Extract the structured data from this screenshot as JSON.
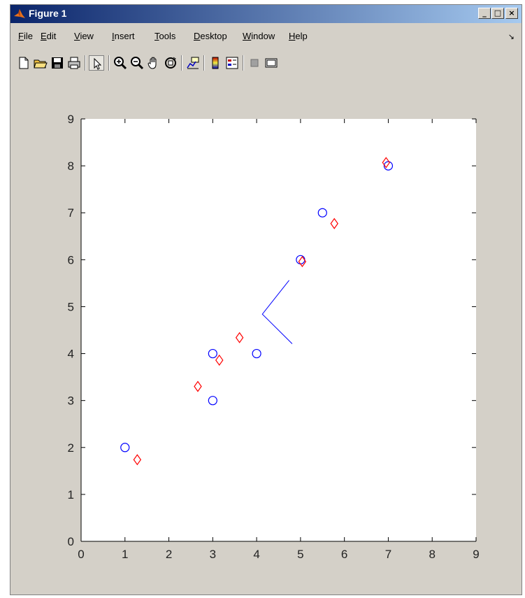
{
  "window": {
    "title": "Figure 1",
    "controls": [
      "_",
      "□",
      "×"
    ]
  },
  "menubar": {
    "items": [
      "File",
      "Edit",
      "View",
      "Insert",
      "Tools",
      "Desktop",
      "Window",
      "Help"
    ]
  },
  "toolbar": {
    "tools": [
      "new-figure",
      "open-file",
      "save-figure",
      "print-figure",
      "edit-plot",
      "zoom-in",
      "zoom-out",
      "pan",
      "rotate-3d",
      "data-cursor",
      "colorbar",
      "legend",
      "hide-plot-tools",
      "show-plot-tools"
    ]
  },
  "chart_data": {
    "type": "scatter",
    "xlim": [
      0,
      9
    ],
    "ylim": [
      0,
      9
    ],
    "xticks": [
      "0",
      "1",
      "2",
      "3",
      "4",
      "5",
      "6",
      "7",
      "8",
      "9"
    ],
    "yticks": [
      "0",
      "1",
      "2",
      "3",
      "4",
      "5",
      "6",
      "7",
      "8",
      "9"
    ],
    "grid": false,
    "series": [
      {
        "marker": "circle",
        "color": "#0000ff",
        "points": [
          [
            1,
            2
          ],
          [
            3,
            3
          ],
          [
            3,
            4
          ],
          [
            4,
            4
          ],
          [
            5,
            6
          ],
          [
            5.5,
            7
          ],
          [
            7,
            8
          ]
        ]
      },
      {
        "marker": "diamond",
        "color": "#ff0000",
        "points": [
          [
            1.28,
            1.74
          ],
          [
            2.66,
            3.3
          ],
          [
            3.15,
            3.86
          ],
          [
            3.61,
            4.34
          ],
          [
            5.04,
            5.96
          ],
          [
            5.77,
            6.77
          ],
          [
            6.95,
            8.07
          ]
        ]
      }
    ],
    "lines": [
      {
        "color": "#0000ff",
        "points": [
          [
            4.74,
            5.56
          ],
          [
            4.13,
            4.84
          ],
          [
            4.81,
            4.21
          ]
        ]
      }
    ]
  }
}
